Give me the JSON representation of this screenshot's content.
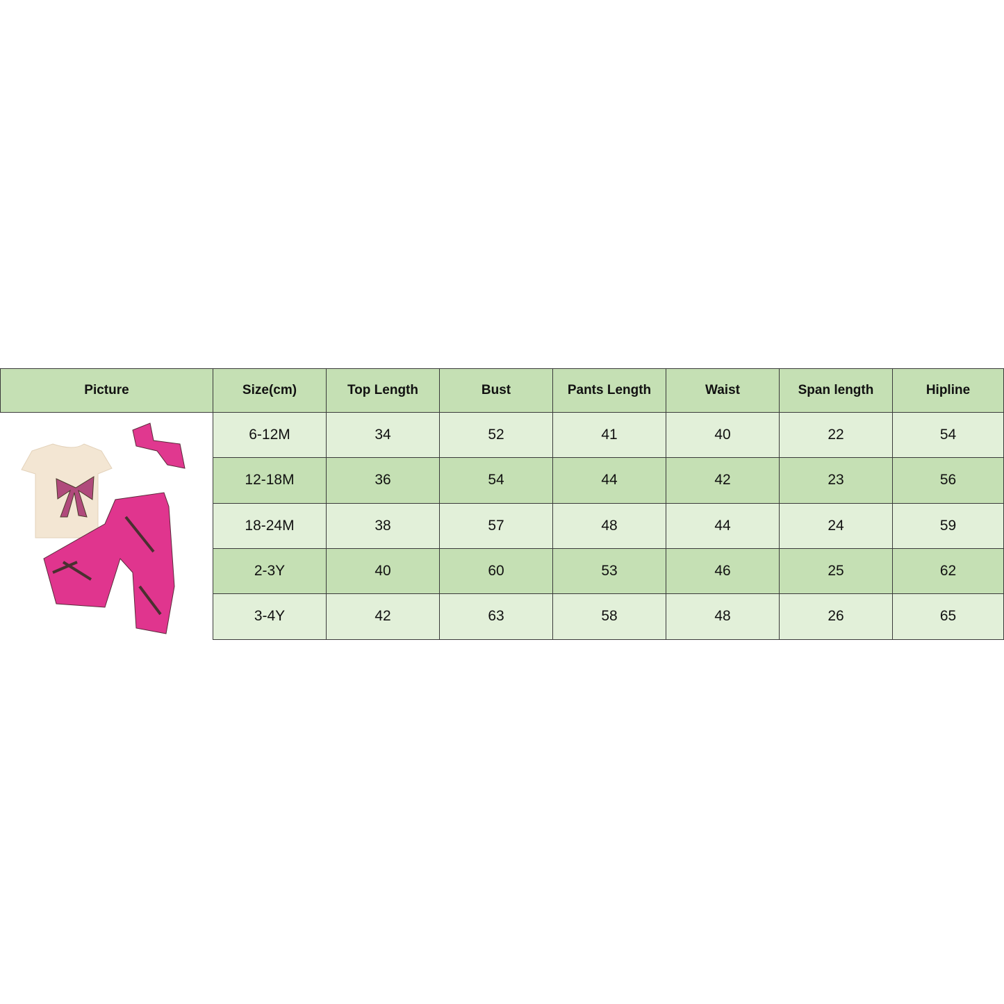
{
  "colors": {
    "header": "#c5e0b4",
    "row_light": "#e2f0d9",
    "row_dark": "#c5e0b4"
  },
  "headers": [
    "Picture",
    "Size(cm)",
    "Top Length",
    "Bust",
    "Pants Length",
    "Waist",
    "Span length",
    "Hipline"
  ],
  "picture": {
    "icon": "outfit-photo-tshirt-bow-flare-pants-headband"
  },
  "rows": [
    [
      "6-12M",
      "34",
      "52",
      "41",
      "40",
      "22",
      "54"
    ],
    [
      "12-18M",
      "36",
      "54",
      "44",
      "42",
      "23",
      "56"
    ],
    [
      "18-24M",
      "38",
      "57",
      "48",
      "44",
      "24",
      "59"
    ],
    [
      "2-3Y",
      "40",
      "60",
      "53",
      "46",
      "25",
      "62"
    ],
    [
      "3-4Y",
      "42",
      "63",
      "58",
      "48",
      "26",
      "65"
    ]
  ]
}
